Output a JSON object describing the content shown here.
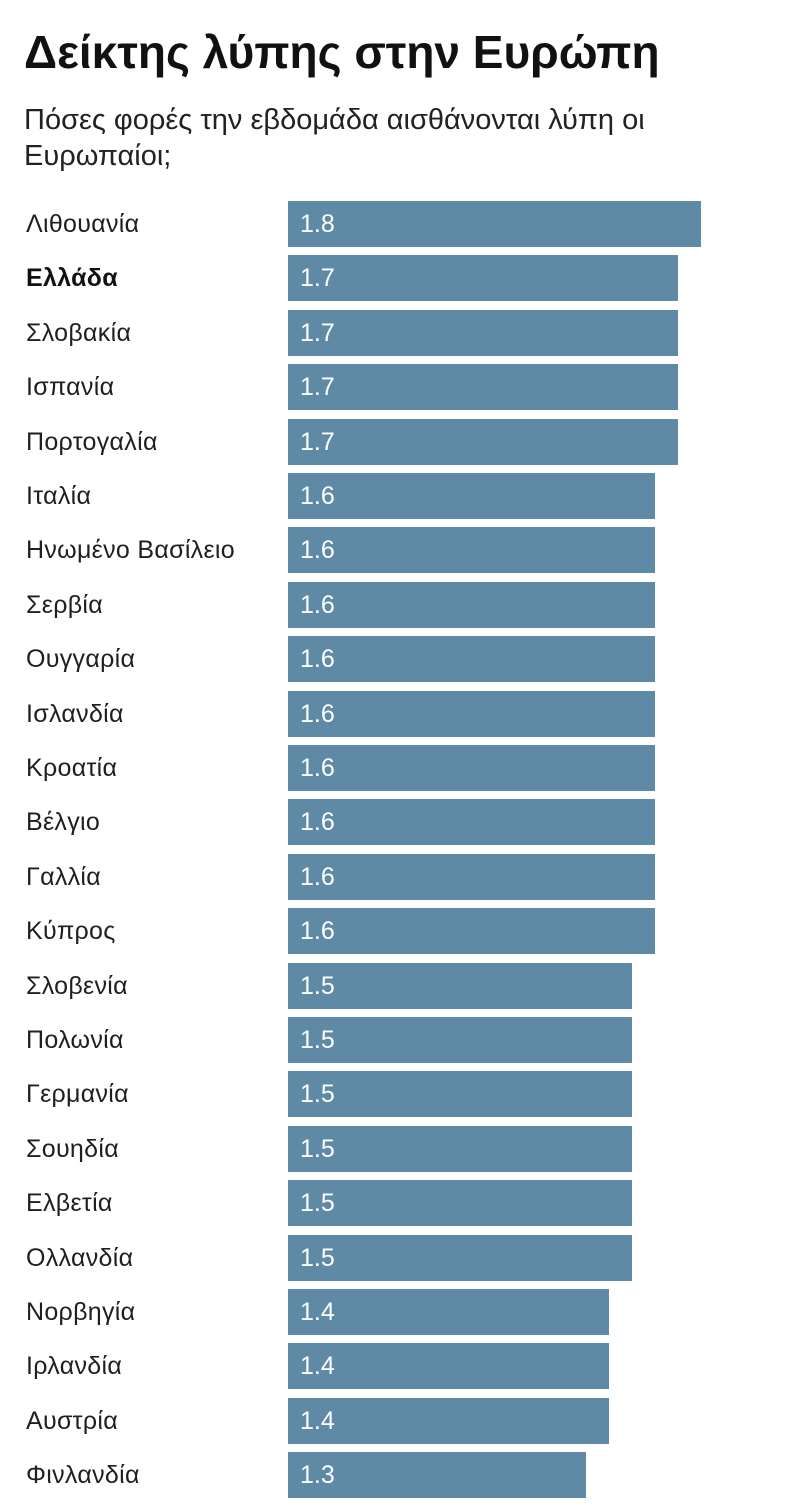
{
  "header": {
    "title": "Δείκτης λύπης στην Ευρώπη",
    "subtitle": "Πόσες φορές την εβδομάδα αισθάνονται λύπη οι Ευρωπαίοι;"
  },
  "colors": {
    "bar": "#5f8aa5",
    "value_label": "#ffffff",
    "background": "#ffffff"
  },
  "chart_data": {
    "type": "bar",
    "orientation": "horizontal",
    "title": "Δείκτης λύπης στην Ευρώπη",
    "subtitle": "Πόσες φορές την εβδομάδα αισθάνονται λύπη οι Ευρωπαίοι;",
    "categories": [
      "Λιθουανία",
      "Ελλάδα",
      "Σλοβακία",
      "Ισπανία",
      "Πορτογαλία",
      "Ιταλία",
      "Ηνωμένο Βασίλειο",
      "Σερβία",
      "Ουγγαρία",
      "Ισλανδία",
      "Κροατία",
      "Βέλγιο",
      "Γαλλία",
      "Κύπρος",
      "Σλοβενία",
      "Πολωνία",
      "Γερμανία",
      "Σουηδία",
      "Ελβετία",
      "Ολλανδία",
      "Νορβηγία",
      "Ιρλανδία",
      "Αυστρία",
      "Φινλανδία"
    ],
    "values": [
      1.8,
      1.7,
      1.7,
      1.7,
      1.7,
      1.6,
      1.6,
      1.6,
      1.6,
      1.6,
      1.6,
      1.6,
      1.6,
      1.6,
      1.5,
      1.5,
      1.5,
      1.5,
      1.5,
      1.5,
      1.4,
      1.4,
      1.4,
      1.3
    ],
    "value_labels": [
      "1.8",
      "1.7",
      "1.7",
      "1.7",
      "1.7",
      "1.6",
      "1.6",
      "1.6",
      "1.6",
      "1.6",
      "1.6",
      "1.6",
      "1.6",
      "1.6",
      "1.5",
      "1.5",
      "1.5",
      "1.5",
      "1.5",
      "1.5",
      "1.4",
      "1.4",
      "1.4",
      "1.3"
    ],
    "highlighted_category": "Ελλάδα",
    "xlim": [
      0,
      1.8
    ],
    "grid": false,
    "legend": "none"
  }
}
